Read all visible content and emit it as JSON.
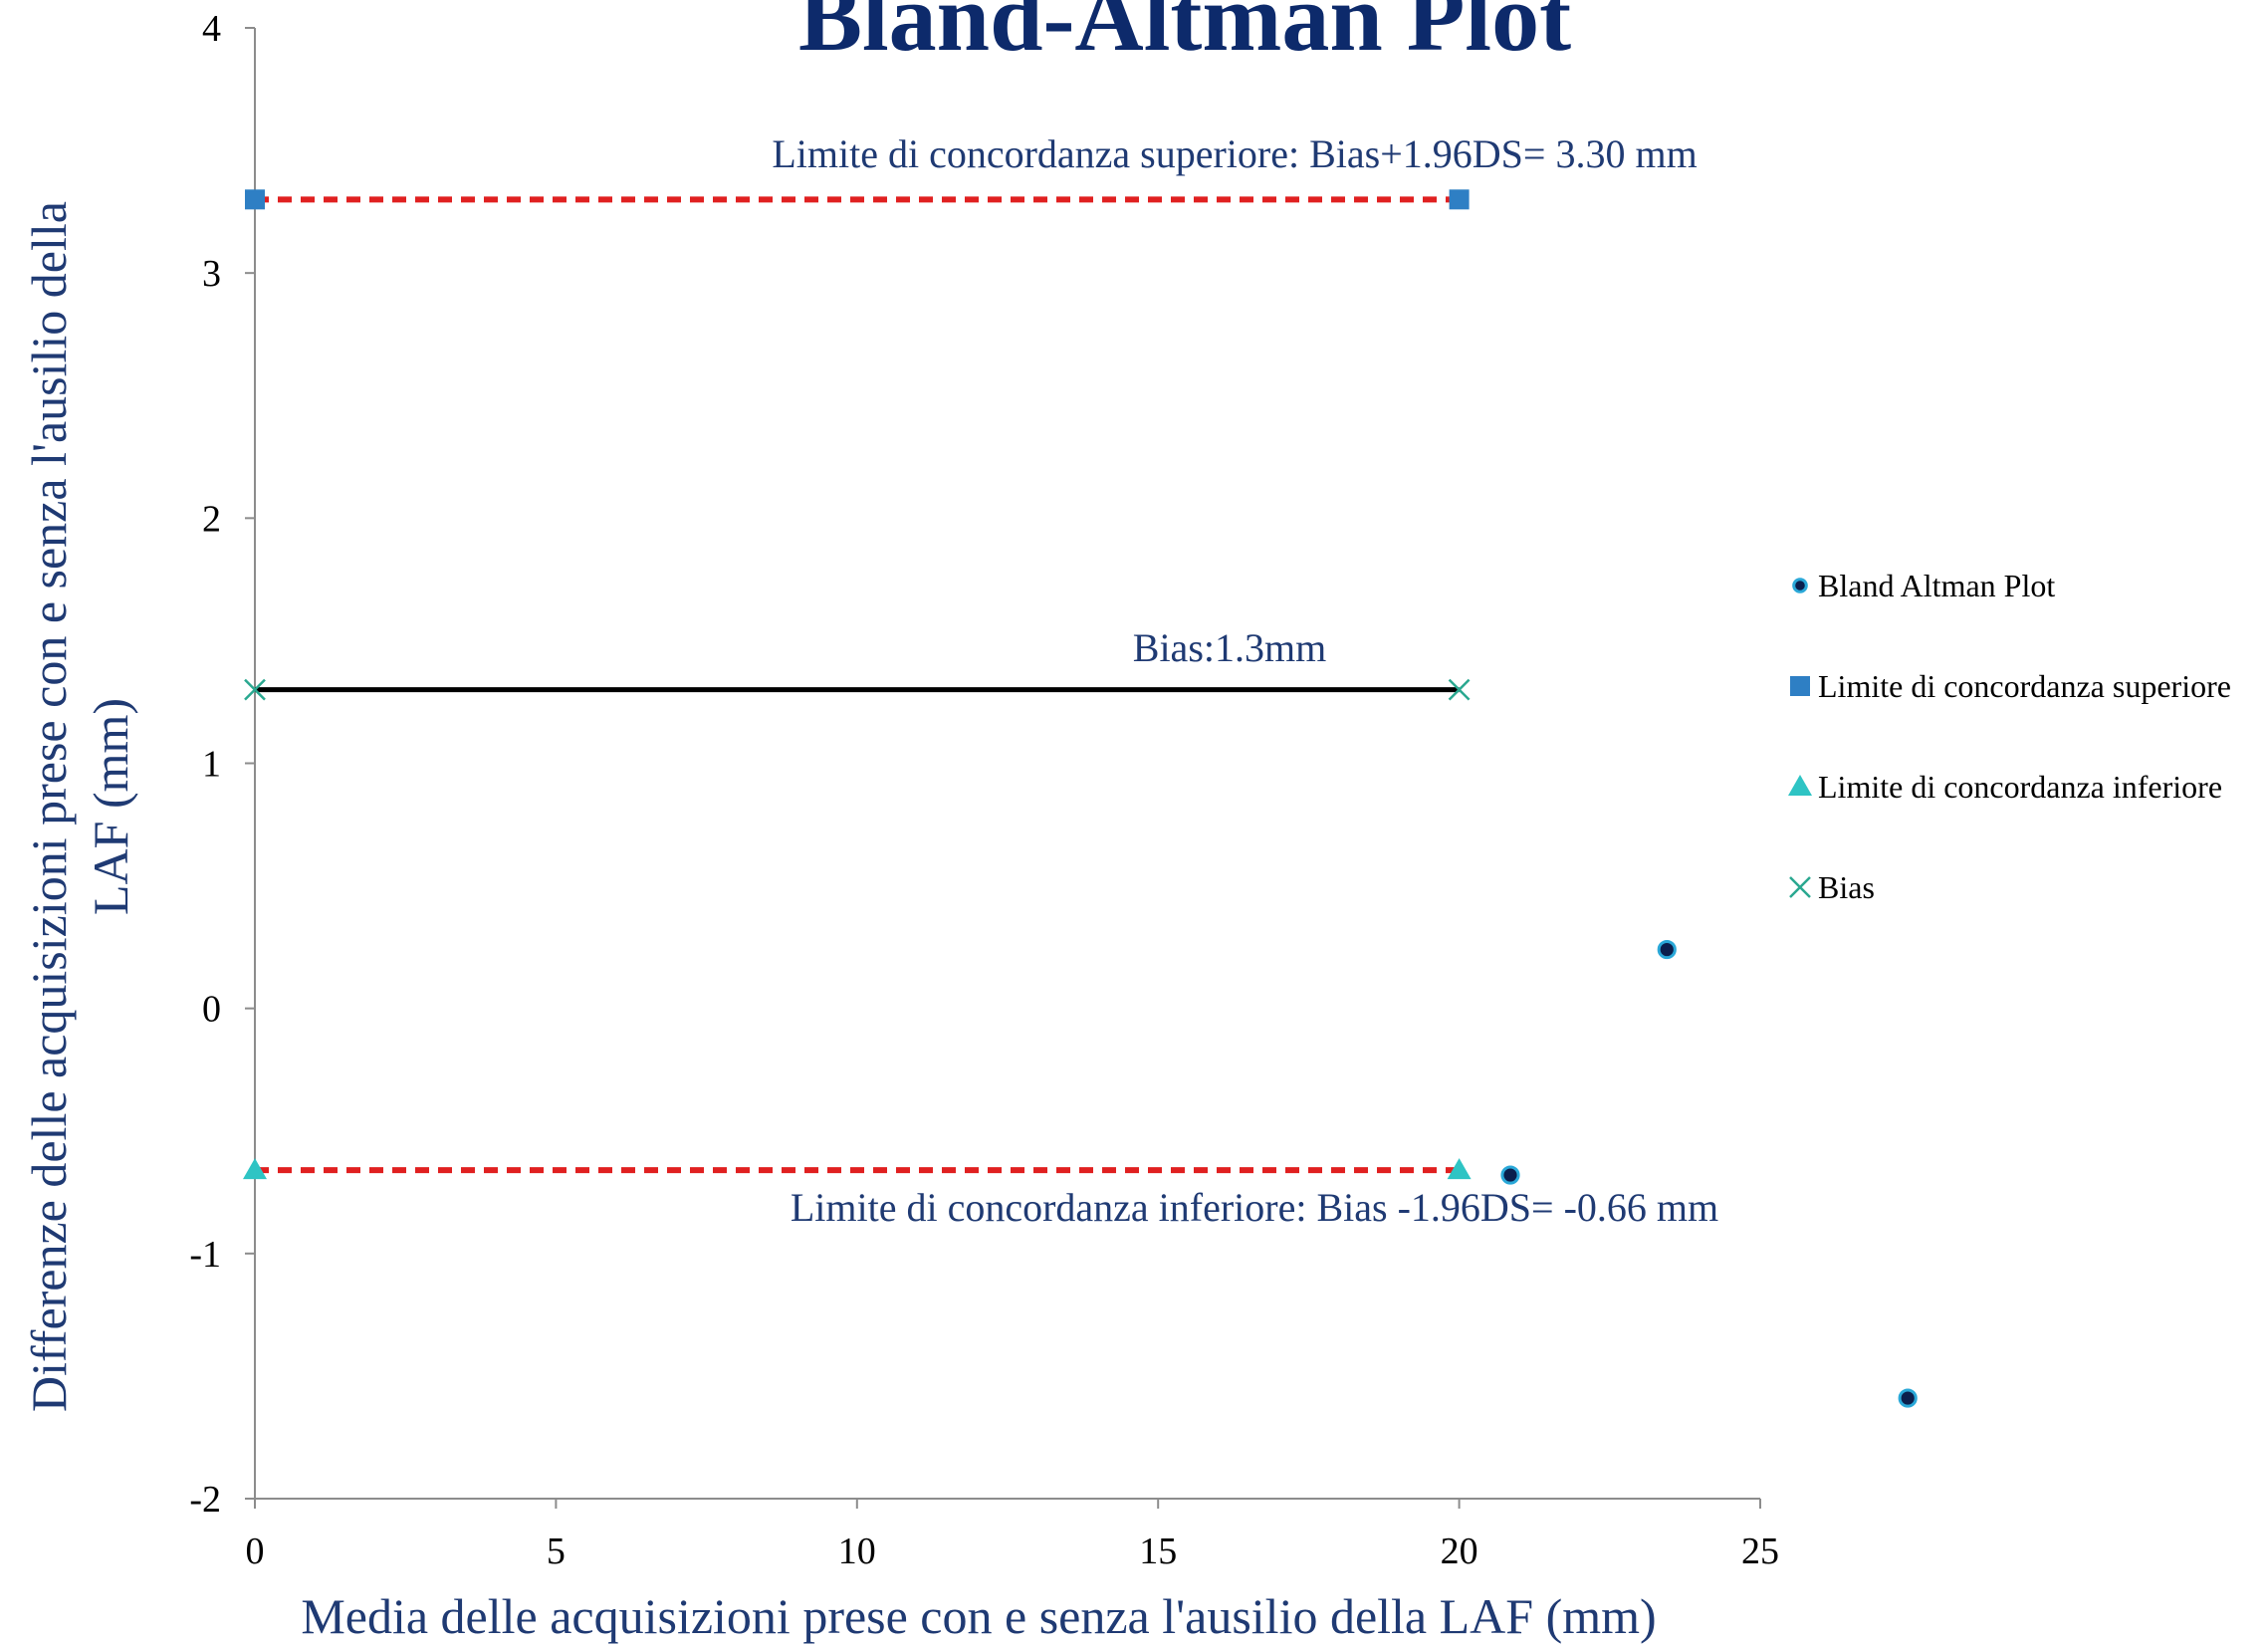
{
  "chart_data": {
    "type": "scatter",
    "title": "Bland-Altman Plot",
    "xlabel": "Media delle acquisizioni prese con e senza l'ausilio della LAF (mm)",
    "ylabel_lines": [
      "Differenze delle acquisizioni prese con e senza l'ausilio della",
      "LAF (mm)"
    ],
    "xlim": [
      0,
      25
    ],
    "ylim": [
      -2,
      4
    ],
    "x_ticks": [
      0,
      5,
      10,
      15,
      20,
      25
    ],
    "y_ticks": [
      -2,
      -1,
      0,
      1,
      2,
      3,
      4
    ],
    "grid": false,
    "legend_position": "right",
    "series": [
      {
        "name": "Bland Altman Plot",
        "marker": "circle",
        "color": "#0b1f4d",
        "edge": "#2aa8d8",
        "points": [
          [
            20.85,
            -0.68
          ],
          [
            23.45,
            0.24
          ],
          [
            27.45,
            -1.59
          ]
        ]
      },
      {
        "name": "Limite di concordanza superiore",
        "marker": "square",
        "color": "#2e7fc4",
        "points": [
          [
            0,
            3.3
          ],
          [
            20,
            3.3
          ]
        ],
        "line": "dashed",
        "line_color": "#e02020"
      },
      {
        "name": "Limite di concordanza inferiore",
        "marker": "triangle",
        "color": "#2ec4c4",
        "points": [
          [
            0,
            -0.66
          ],
          [
            20,
            -0.66
          ]
        ],
        "line": "dashed",
        "line_color": "#e02020"
      },
      {
        "name": "Bias",
        "marker": "x",
        "color": "#2aa890",
        "points": [
          [
            0,
            1.3
          ],
          [
            20,
            1.3
          ]
        ],
        "line": "solid",
        "line_color": "#000000"
      }
    ],
    "annotations": [
      {
        "id": "upper",
        "text": "Limite di concordanza superiore: Bias+1.96DS= 3.30 mm"
      },
      {
        "id": "bias",
        "text": "Bias:1.3mm"
      },
      {
        "id": "lower",
        "text": "Limite di concordanza inferiore: Bias -1.96DS= -0.66 mm"
      }
    ]
  }
}
